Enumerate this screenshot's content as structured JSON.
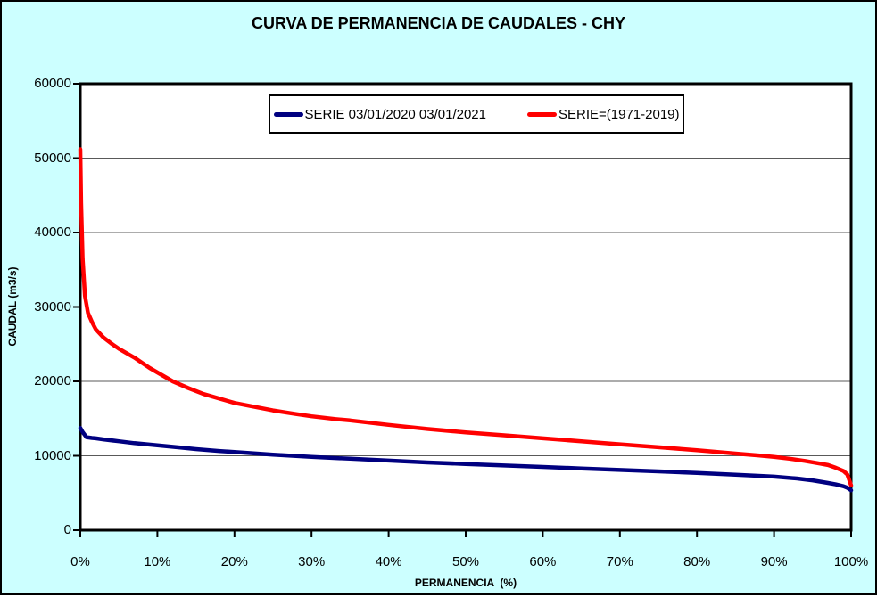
{
  "window": {
    "title": "CURVA DE PERMANENCIA DE CAUDALES - CHY"
  },
  "chart_data": {
    "type": "line",
    "title": "CURVA DE PERMANENCIA DE CAUDALES - CHY",
    "xlabel": "PERMANENCIA  (%)",
    "ylabel": "CAUDAL  (m3/s)",
    "xlim": [
      0,
      100
    ],
    "ylim": [
      0,
      60000
    ],
    "grid": "horizontal",
    "legend_position": "top-center",
    "colors": {
      "background": "#CCFFFF",
      "plot_background": "#FFFFFF",
      "grid": "#595959",
      "axis": "#000000"
    },
    "x_ticks": [
      {
        "v": 0,
        "label": "0%"
      },
      {
        "v": 10,
        "label": "10%"
      },
      {
        "v": 20,
        "label": "20%"
      },
      {
        "v": 30,
        "label": "30%"
      },
      {
        "v": 40,
        "label": "40%"
      },
      {
        "v": 50,
        "label": "50%"
      },
      {
        "v": 60,
        "label": "60%"
      },
      {
        "v": 70,
        "label": "70%"
      },
      {
        "v": 80,
        "label": "80%"
      },
      {
        "v": 90,
        "label": "90%"
      },
      {
        "v": 100,
        "label": "100%"
      }
    ],
    "y_ticks": [
      {
        "v": 0,
        "label": "0"
      },
      {
        "v": 10000,
        "label": "10000"
      },
      {
        "v": 20000,
        "label": "20000"
      },
      {
        "v": 30000,
        "label": "30000"
      },
      {
        "v": 40000,
        "label": "40000"
      },
      {
        "v": 50000,
        "label": "50000"
      },
      {
        "v": 60000,
        "label": "60000"
      }
    ],
    "series": [
      {
        "name": "SERIE 03/01/2020 03/01/2021",
        "color": "#000080",
        "x": [
          0,
          0.3,
          0.8,
          1.5,
          2,
          3,
          5,
          7,
          10,
          13,
          15,
          18,
          20,
          25,
          30,
          35,
          40,
          45,
          50,
          55,
          60,
          65,
          70,
          75,
          80,
          85,
          88,
          90,
          93,
          95,
          97,
          98,
          99,
          99.5,
          100
        ],
        "y": [
          13750,
          13200,
          12500,
          12400,
          12350,
          12200,
          11950,
          11700,
          11400,
          11100,
          10900,
          10650,
          10500,
          10150,
          9850,
          9600,
          9350,
          9100,
          8900,
          8700,
          8500,
          8300,
          8100,
          7900,
          7700,
          7450,
          7300,
          7200,
          6950,
          6700,
          6350,
          6150,
          5900,
          5700,
          5350
        ]
      },
      {
        "name": "SERIE=(1971-2019)",
        "color": "#FF0000",
        "x": [
          0,
          0.1,
          0.3,
          0.6,
          1,
          1.5,
          2,
          3,
          4,
          5,
          6,
          7,
          8,
          9,
          10,
          12,
          14,
          16,
          18,
          20,
          22,
          25,
          28,
          30,
          33,
          35,
          38,
          40,
          45,
          50,
          55,
          60,
          65,
          70,
          75,
          80,
          85,
          88,
          90,
          92,
          94,
          96,
          97,
          98,
          99,
          99.5,
          100
        ],
        "y": [
          51200,
          44000,
          36500,
          31500,
          29200,
          28000,
          27000,
          25900,
          25100,
          24400,
          23800,
          23200,
          22500,
          21800,
          21200,
          20000,
          19100,
          18300,
          17700,
          17100,
          16700,
          16100,
          15600,
          15300,
          14950,
          14750,
          14400,
          14150,
          13600,
          13150,
          12750,
          12350,
          11950,
          11550,
          11150,
          10750,
          10300,
          10050,
          9850,
          9600,
          9300,
          8950,
          8750,
          8400,
          7950,
          7500,
          6000
        ]
      }
    ]
  }
}
